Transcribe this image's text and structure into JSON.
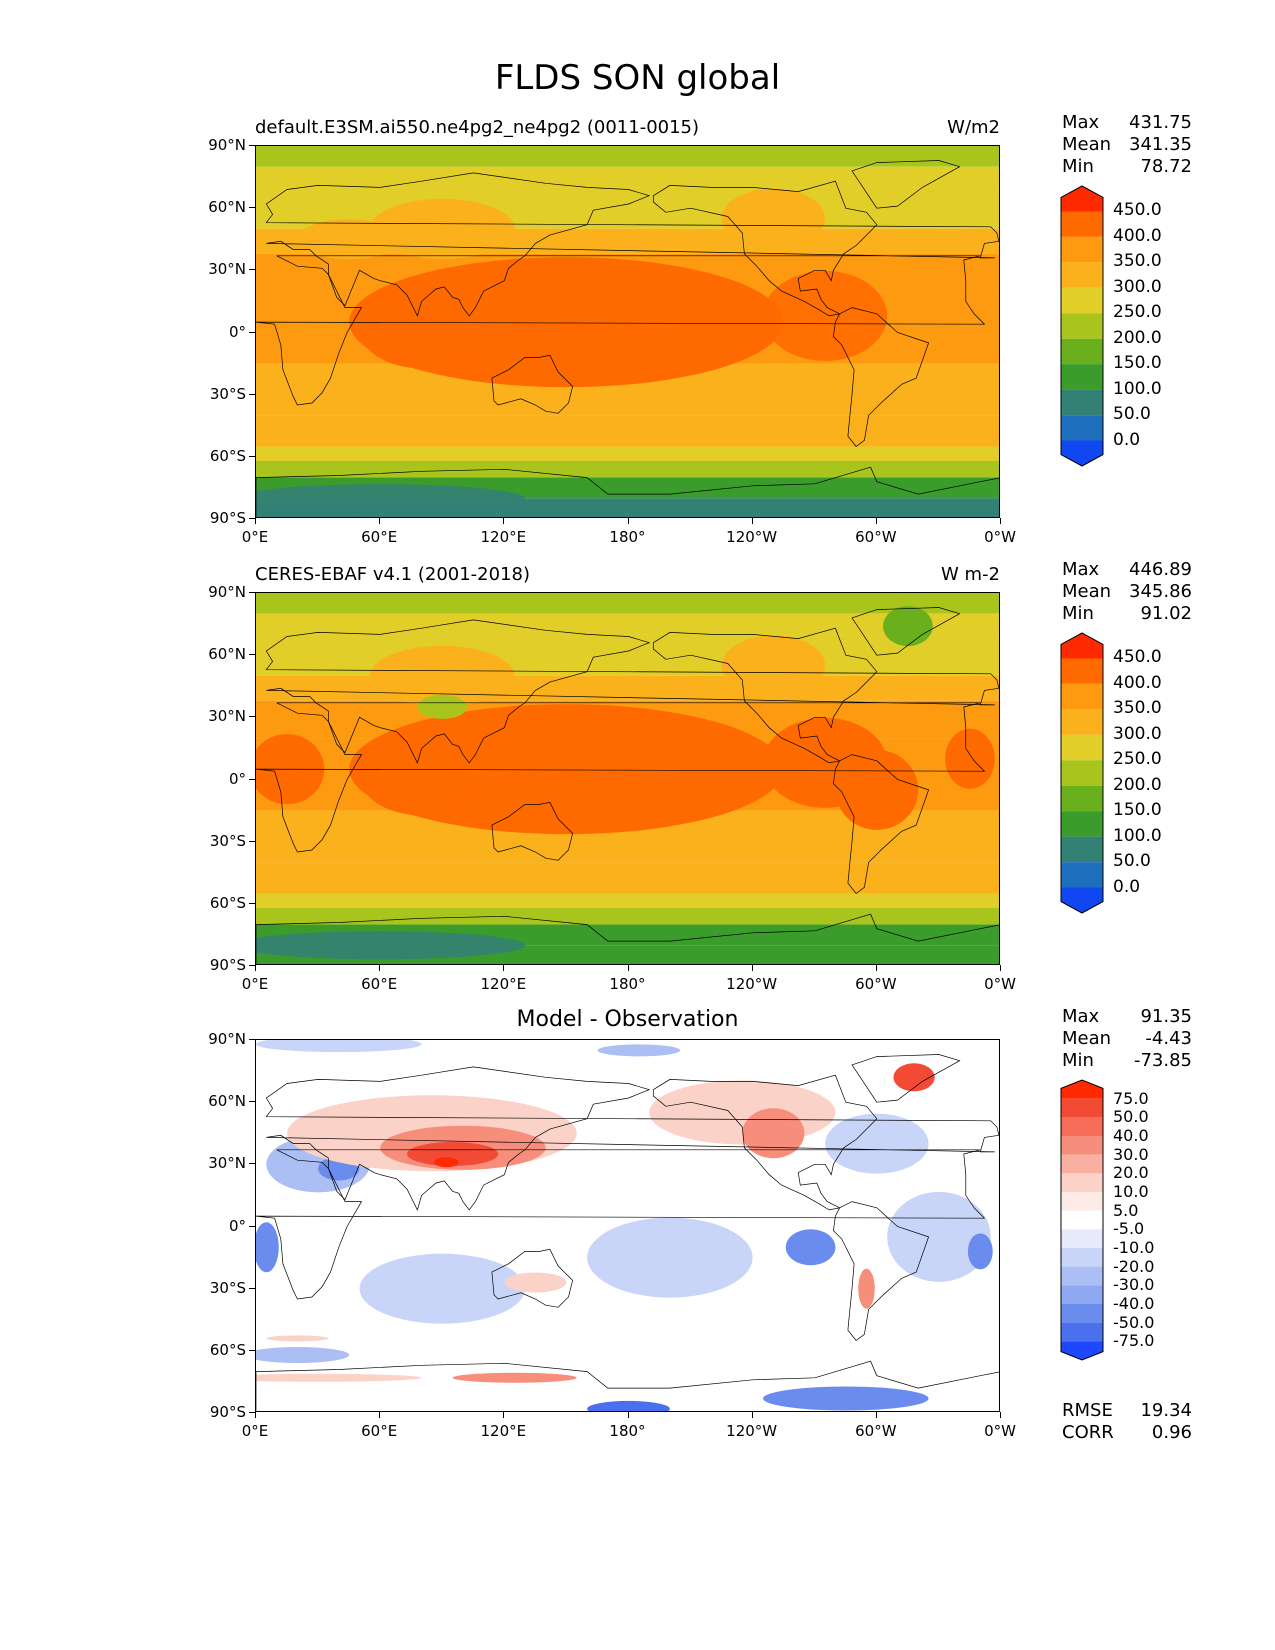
{
  "title": "FLDS SON global",
  "axes": {
    "lat_ticks": [
      "90°N",
      "60°N",
      "30°N",
      "0°",
      "30°S",
      "60°S",
      "90°S"
    ],
    "lon_ticks": [
      "0°E",
      "60°E",
      "120°E",
      "180°",
      "120°W",
      "60°W",
      "0°W"
    ]
  },
  "panels": [
    {
      "left_title": "default.E3SM.ai550.ne4pg2_ne4pg2 (0011-0015)",
      "center_title": "",
      "units": "W/m2",
      "stats": [
        {
          "label": "Max",
          "value": "431.75"
        },
        {
          "label": "Mean",
          "value": "341.35"
        },
        {
          "label": "Min",
          "value": "78.72"
        }
      ],
      "colorbar": {
        "labels": [
          "450.0",
          "400.0",
          "350.0",
          "300.0",
          "250.0",
          "200.0",
          "150.0",
          "100.0",
          "50.0",
          "0.0"
        ],
        "colors": [
          "#ff2a00",
          "#ff6a00",
          "#fe9a0f",
          "#fbb11b",
          "#e2ce29",
          "#a9c41c",
          "#6aaf1c",
          "#3a9c2a",
          "#338174",
          "#1f6fbf",
          "#1047f0"
        ],
        "over_color": "#ff2a00",
        "under_color": "#0d39ff"
      },
      "metrics": []
    },
    {
      "left_title": "CERES-EBAF v4.1 (2001-2018)",
      "center_title": "",
      "units": "W m-2",
      "stats": [
        {
          "label": "Max",
          "value": "446.89"
        },
        {
          "label": "Mean",
          "value": "345.86"
        },
        {
          "label": "Min",
          "value": "91.02"
        }
      ],
      "colorbar": {
        "labels": [
          "450.0",
          "400.0",
          "350.0",
          "300.0",
          "250.0",
          "200.0",
          "150.0",
          "100.0",
          "50.0",
          "0.0"
        ],
        "colors": [
          "#ff2a00",
          "#ff6a00",
          "#fe9a0f",
          "#fbb11b",
          "#e2ce29",
          "#a9c41c",
          "#6aaf1c",
          "#3a9c2a",
          "#338174",
          "#1f6fbf",
          "#1047f0"
        ],
        "over_color": "#ff2a00",
        "under_color": "#0d39ff"
      },
      "metrics": []
    },
    {
      "left_title": "",
      "center_title": "Model - Observation",
      "units": "",
      "stats": [
        {
          "label": "Max",
          "value": "91.35"
        },
        {
          "label": "Mean",
          "value": "-4.43"
        },
        {
          "label": "Min",
          "value": "-73.85"
        }
      ],
      "colorbar": {
        "labels": [
          "75.0",
          "50.0",
          "40.0",
          "30.0",
          "20.0",
          "10.0",
          "5.0",
          "-5.0",
          "-10.0",
          "-20.0",
          "-30.0",
          "-40.0",
          "-50.0",
          "-75.0"
        ],
        "colors": [
          "#ff2a00",
          "#f34a35",
          "#f56c58",
          "#f78e7c",
          "#f9b0a1",
          "#fbd2c7",
          "#fdebe6",
          "#ffffff",
          "#e5ebfb",
          "#c8d5f8",
          "#abbff5",
          "#8ea9f2",
          "#6b8cef",
          "#4a70ee",
          "#1e48ff"
        ],
        "over_color": "#ff2a00",
        "under_color": "#0d39ff"
      },
      "metrics": [
        {
          "label": "RMSE",
          "value": "19.34"
        },
        {
          "label": "CORR",
          "value": "0.96"
        }
      ]
    }
  ]
}
